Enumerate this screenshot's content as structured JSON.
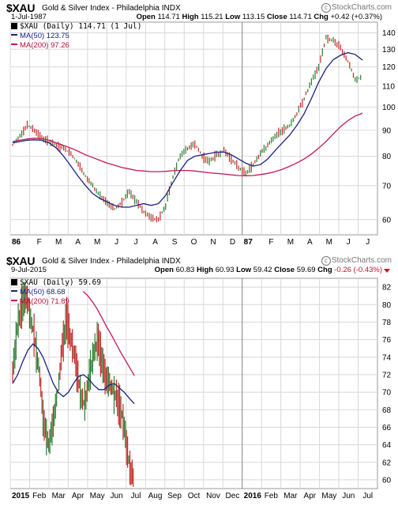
{
  "colors": {
    "up_bar": "#2e7d32",
    "down_bar": "#c62828",
    "ma50": "#1a237e",
    "ma200": "#c2185b",
    "grid": "#d8d8d8",
    "brand": "#777777"
  },
  "brand_text": "StockCharts.com",
  "chart_data": [
    {
      "type": "line",
      "symbol": "$XAU",
      "description": "Gold & Silver Index - Philadelphia INDX",
      "date": "1-Jul-1987",
      "ohlc": {
        "open_label": "Open",
        "open": "114.71",
        "high_label": "High",
        "high": "115.21",
        "low_label": "Low",
        "low": "113.15",
        "close_label": "Close",
        "close": "114.71",
        "chg_label": "Chg",
        "chg": "+0.42 (+0.37%)"
      },
      "legend": {
        "price": "$XAU (Daily) 114.71 (1 Jul)",
        "ma50": "MA(50) 123.75",
        "ma200": "MA(200) 97.26"
      },
      "x_labels": [
        "86",
        "F",
        "M",
        "A",
        "M",
        "J",
        "J",
        "A",
        "S",
        "O",
        "N",
        "D",
        "87",
        "F",
        "M",
        "A",
        "M",
        "J",
        "J"
      ],
      "y_ticks": [
        60,
        70,
        80,
        90,
        100,
        110,
        120,
        130,
        140
      ],
      "y_scale": "log",
      "ylim": [
        56,
        147
      ],
      "year_start_index": 12,
      "grid": true,
      "series": [
        {
          "name": "$XAU (Daily)",
          "type": "price_bars",
          "values": [
            84.0,
            88.0,
            92.0,
            90.0,
            87.0,
            85.5,
            84.0,
            83.0,
            81.0,
            77.0,
            73.0,
            70.0,
            67.0,
            64.5,
            63.0,
            65.0,
            68.0,
            65.0,
            62.0,
            60.5,
            60.0,
            64.0,
            73.0,
            80.0,
            83.0,
            84.5,
            80.0,
            78.0,
            80.5,
            82.0,
            79.0,
            76.0,
            74.0,
            77.0,
            81.0,
            84.0,
            87.5,
            90.0,
            92.0,
            97.0,
            104.0,
            112.0,
            120.0,
            137.0,
            135.0,
            131.0,
            123.0,
            113.0,
            114.7
          ]
        },
        {
          "name": "MA(50)",
          "values": [
            85.0,
            85.5,
            86.0,
            86.2,
            86.0,
            85.0,
            83.0,
            80.0,
            76.5,
            73.0,
            70.0,
            67.5,
            66.0,
            65.0,
            64.0,
            63.5,
            63.5,
            64.0,
            64.5,
            64.0,
            64.5,
            67.0,
            71.0,
            75.0,
            78.5,
            80.0,
            80.5,
            81.0,
            81.5,
            81.5,
            80.5,
            79.0,
            77.5,
            76.5,
            77.0,
            79.0,
            82.0,
            85.0,
            88.0,
            92.0,
            97.0,
            104.0,
            112.0,
            119.0,
            124.0,
            126.5,
            128.0,
            127.0,
            123.75
          ]
        },
        {
          "name": "MA(200)",
          "values": [
            85.5,
            86.0,
            86.5,
            86.8,
            86.6,
            86.0,
            85.0,
            84.0,
            83.0,
            81.8,
            80.5,
            79.5,
            78.5,
            77.5,
            76.8,
            76.0,
            75.5,
            75.0,
            74.8,
            74.6,
            74.6,
            74.7,
            74.9,
            75.0,
            75.0,
            74.8,
            74.5,
            74.2,
            74.0,
            73.8,
            73.5,
            73.3,
            73.2,
            73.3,
            73.6,
            74.0,
            74.6,
            75.4,
            76.4,
            77.6,
            79.0,
            80.8,
            83.0,
            85.5,
            88.5,
            91.5,
            94.0,
            96.0,
            97.26
          ]
        }
      ]
    },
    {
      "type": "line",
      "symbol": "$XAU",
      "description": "Gold & Silver Index - Philadelphia INDX",
      "date": "9-Jul-2015",
      "ohlc": {
        "open_label": "Open",
        "open": "60.83",
        "high_label": "High",
        "high": "60.93",
        "low_label": "Low",
        "low": "59.42",
        "close_label": "Close",
        "close": "59.69",
        "chg_label": "Chg",
        "chg": "-0.26 (-0.43%)"
      },
      "legend": {
        "price": "$XAU (Daily) 59.69",
        "ma50": "MA(50) 68.68",
        "ma200": "MA(200) 71.89"
      },
      "x_labels": [
        "2015",
        "Feb",
        "Mar",
        "Apr",
        "May",
        "Jun",
        "Jul",
        "Aug",
        "Sep",
        "Oct",
        "Nov",
        "Dec",
        "2016",
        "Feb",
        "Mar",
        "Apr",
        "May",
        "Jun",
        "Jul"
      ],
      "y_ticks": [
        60,
        62,
        64,
        66,
        68,
        70,
        72,
        74,
        76,
        78,
        80,
        82
      ],
      "y_scale": "linear",
      "ylim": [
        59,
        83
      ],
      "year_start_index": 12,
      "grid": true,
      "series": [
        {
          "name": "$XAU (Daily)",
          "type": "price_bars",
          "values": [
            72.0,
            77.0,
            80.0,
            81.0,
            78.5,
            76.0,
            72.0,
            66.0,
            64.0,
            66.5,
            70.0,
            75.5,
            78.0,
            76.0,
            73.5,
            70.0,
            68.5,
            72.0,
            74.5,
            76.0,
            73.0,
            71.5,
            70.5,
            69.5,
            68.0,
            65.0,
            61.5,
            59.69
          ]
        },
        {
          "name": "MA(50)",
          "values": [
            71.0,
            72.0,
            73.5,
            74.8,
            75.5,
            75.0,
            74.0,
            72.5,
            71.0,
            70.0,
            69.5,
            70.0,
            71.0,
            71.8,
            72.0,
            71.5,
            70.8,
            70.3,
            70.3,
            70.8,
            71.0,
            70.5,
            70.0,
            69.3,
            68.68
          ]
        },
        {
          "name": "MA(200)",
          "values": [
            81.5,
            81.0,
            80.3,
            79.5,
            78.5,
            77.5,
            76.6,
            75.6,
            74.6,
            73.7,
            72.8,
            71.89
          ]
        }
      ]
    }
  ]
}
